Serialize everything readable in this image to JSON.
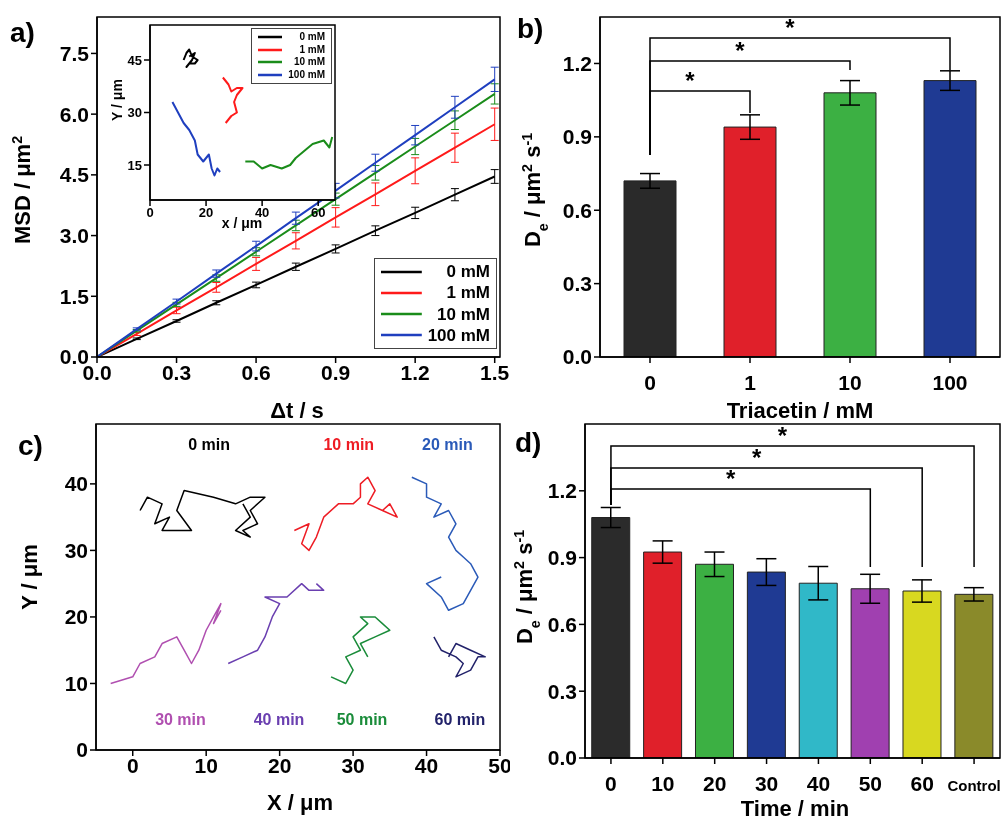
{
  "chart_data": [
    {
      "type": "line",
      "title": "a)",
      "xlabel": "Δt / s",
      "ylabel": "MSD / μm$^{2}$",
      "x": [
        0,
        0.15,
        0.3,
        0.45,
        0.6,
        0.75,
        0.9,
        1.05,
        1.2,
        1.35,
        1.5
      ],
      "xlim": [
        0,
        1.52
      ],
      "xticks": [
        {
          "value": 0,
          "label": "0.0"
        },
        {
          "value": 0.3,
          "label": "0.3"
        },
        {
          "value": 0.6,
          "label": "0.6"
        },
        {
          "value": 0.9,
          "label": "0.9"
        },
        {
          "value": 1.2,
          "label": "1.2"
        },
        {
          "value": 1.5,
          "label": "1.5"
        }
      ],
      "ylim": [
        0,
        8.4
      ],
      "yticks": [
        {
          "value": 0,
          "label": "0.0"
        },
        {
          "value": 1.5,
          "label": "1.5"
        },
        {
          "value": 3,
          "label": "3.0"
        },
        {
          "value": 4.5,
          "label": "4.5"
        },
        {
          "value": 6,
          "label": "6.0"
        },
        {
          "value": 7.5,
          "label": "7.5"
        }
      ],
      "legend": "bottom right",
      "series": [
        {
          "name": "0 mM",
          "color": "#000000",
          "values": [
            0,
            0.45,
            0.89,
            1.34,
            1.78,
            2.23,
            2.67,
            3.12,
            3.56,
            4.01,
            4.46
          ],
          "errors": [
            0,
            0.02,
            0.03,
            0.05,
            0.07,
            0.09,
            0.1,
            0.12,
            0.14,
            0.15,
            0.17
          ]
        },
        {
          "name": "1 mM",
          "color": "#ff1a1a",
          "values": [
            0,
            0.57,
            1.15,
            1.72,
            2.3,
            2.87,
            3.45,
            4.02,
            4.6,
            5.17,
            5.75
          ],
          "errors": [
            0,
            0.04,
            0.08,
            0.12,
            0.16,
            0.2,
            0.24,
            0.28,
            0.32,
            0.36,
            0.4
          ]
        },
        {
          "name": "10 mM",
          "color": "#1a8c1a",
          "values": [
            0,
            0.65,
            1.3,
            1.95,
            2.6,
            3.25,
            3.9,
            4.55,
            5.2,
            5.85,
            6.5
          ],
          "errors": [
            0,
            0.03,
            0.05,
            0.08,
            0.1,
            0.13,
            0.15,
            0.18,
            0.2,
            0.23,
            0.25
          ]
        },
        {
          "name": "100 mM",
          "color": "#1f3fbf",
          "values": [
            0,
            0.69,
            1.37,
            2.06,
            2.74,
            3.43,
            4.11,
            4.8,
            5.48,
            6.17,
            6.86
          ],
          "errors": [
            0,
            0.03,
            0.06,
            0.09,
            0.12,
            0.15,
            0.18,
            0.21,
            0.24,
            0.27,
            0.3
          ]
        }
      ]
    },
    {
      "type": "line",
      "xlabel": "x / μm",
      "ylabel": "Y / μm",
      "xlim": [
        0,
        66
      ],
      "xticks": [
        0,
        20,
        40,
        60
      ],
      "ylim": [
        5,
        55
      ],
      "yticks": [
        15,
        30,
        45
      ],
      "legend": "top right",
      "series": [
        {
          "name": "0 mM",
          "color": "#000000",
          "x": [
            12,
            13,
            14,
            15,
            17,
            16,
            14,
            13,
            15,
            16,
            14
          ],
          "values": [
            45,
            47,
            48,
            46,
            45,
            44,
            44,
            43,
            45,
            47,
            46
          ]
        },
        {
          "name": "1 mM",
          "color": "#ff1a1a",
          "x": [
            26,
            28,
            29,
            31,
            33,
            31,
            30,
            31,
            29,
            28,
            27
          ],
          "values": [
            40,
            38,
            36,
            37,
            37,
            35,
            33,
            30,
            29,
            28,
            27
          ]
        },
        {
          "name": "10 mM",
          "color": "#1a8c1a",
          "x": [
            34,
            37,
            40,
            43,
            47,
            50,
            52,
            55,
            58,
            62,
            64,
            65
          ],
          "values": [
            16,
            16,
            14,
            15,
            14,
            15,
            17,
            19,
            21,
            22,
            20,
            23
          ]
        },
        {
          "name": "100 mM",
          "color": "#1f3fbf",
          "x": [
            8,
            10,
            12,
            14,
            16,
            17,
            19,
            21,
            22,
            23,
            24,
            25
          ],
          "values": [
            33,
            30,
            27,
            25,
            22,
            18,
            16,
            18,
            14,
            12,
            14,
            13
          ]
        }
      ]
    },
    {
      "type": "bar",
      "title": "b)",
      "xlabel": "Triacetin / mM",
      "ylabel": "D$_{e}$ / μm$^{2}$ s$^{-1}$",
      "categories": [
        "0",
        "1",
        "10",
        "100"
      ],
      "values": [
        0.72,
        0.94,
        1.08,
        1.13
      ],
      "errors": [
        0.03,
        0.05,
        0.05,
        0.04
      ],
      "colors": [
        "#2a2a2a",
        "#e0202a",
        "#3cb043",
        "#1f3a93"
      ],
      "ylim": [
        0,
        1.39
      ],
      "yticks": [
        {
          "value": 0,
          "label": "0.0"
        },
        {
          "value": 0.3,
          "label": "0.3"
        },
        {
          "value": 0.6,
          "label": "0.6"
        },
        {
          "value": 0.9,
          "label": "0.9"
        },
        {
          "value": 1.2,
          "label": "1.2"
        }
      ],
      "annotations": [
        "*",
        "*",
        "*"
      ]
    },
    {
      "type": "line",
      "title": "c)",
      "xlabel": "X / μm",
      "ylabel": "Y / μm",
      "xlim": [
        -5,
        50
      ],
      "xticks": [
        0,
        10,
        20,
        30,
        40,
        50
      ],
      "ylim": [
        0,
        49
      ],
      "yticks": [
        0,
        10,
        20,
        30,
        40
      ],
      "series": [
        {
          "name": "0 min",
          "color": "#000000",
          "x": [
            1,
            2,
            4,
            3,
            5,
            4,
            8,
            6,
            7,
            11,
            14,
            16,
            18,
            16,
            17,
            15,
            16,
            14,
            16,
            15
          ],
          "values": [
            36,
            38,
            37,
            34,
            35,
            33,
            33,
            36,
            39,
            38,
            37,
            38,
            38,
            36,
            34,
            33,
            32,
            33,
            35,
            37
          ]
        },
        {
          "name": "10 min",
          "color": "#ee1c24",
          "x": [
            22,
            24,
            23,
            24,
            25,
            26,
            28,
            30,
            31,
            31,
            32,
            33,
            32,
            34,
            35,
            36,
            34
          ],
          "values": [
            33,
            34,
            31,
            30,
            32,
            35,
            37,
            37,
            38,
            40,
            41,
            39,
            37,
            36,
            37,
            35,
            36
          ]
        },
        {
          "name": "20 min",
          "color": "#2a5ab8",
          "x": [
            38,
            40,
            40,
            42,
            41,
            43,
            44,
            43,
            44,
            45,
            46,
            47,
            46,
            45,
            43,
            42,
            40,
            42
          ],
          "values": [
            41,
            40,
            38,
            37,
            35,
            36,
            34,
            32,
            30,
            29,
            28,
            26,
            24,
            22,
            21,
            23,
            25,
            26
          ]
        },
        {
          "name": "30 min",
          "color": "#b04fb0",
          "x": [
            -3,
            0,
            1,
            3,
            4,
            6,
            7,
            8,
            9,
            10,
            11,
            12,
            11,
            12
          ],
          "values": [
            10,
            11,
            13,
            14,
            16,
            17,
            15,
            13,
            15,
            18,
            20,
            22,
            19,
            21
          ]
        },
        {
          "name": "40 min",
          "color": "#6a3fb0",
          "x": [
            13,
            15,
            17,
            18,
            19,
            20,
            18,
            21,
            23,
            24,
            26,
            25
          ],
          "values": [
            13,
            14,
            15,
            17,
            20,
            22,
            23,
            23,
            25,
            24,
            24,
            25
          ]
        },
        {
          "name": "50 min",
          "color": "#1a8c3a",
          "x": [
            27,
            29,
            30,
            29,
            31,
            30,
            32,
            31,
            33,
            34,
            35,
            33,
            31,
            32
          ],
          "values": [
            11,
            10,
            12,
            14,
            15,
            17,
            19,
            20,
            20,
            19,
            18,
            17,
            16,
            14
          ]
        },
        {
          "name": "60 min",
          "color": "#22226a",
          "x": [
            41,
            42,
            44,
            45,
            44,
            46,
            47,
            48,
            46,
            44,
            43
          ],
          "values": [
            17,
            15,
            14,
            13,
            11,
            12,
            14,
            14,
            15,
            16,
            14
          ]
        }
      ]
    },
    {
      "type": "bar",
      "title": "d)",
      "xlabel": "Time / min",
      "ylabel": "D$_{e}$ / μm$^{2}$ s$^{-1}$",
      "categories": [
        "0",
        "10",
        "20",
        "30",
        "40",
        "50",
        "60",
        "Control"
      ],
      "values": [
        1.08,
        0.925,
        0.87,
        0.835,
        0.785,
        0.76,
        0.75,
        0.735
      ],
      "errors": [
        0.045,
        0.05,
        0.055,
        0.06,
        0.075,
        0.065,
        0.05,
        0.03
      ],
      "colors": [
        "#2b2b2b",
        "#e0202a",
        "#3cb043",
        "#1f3a93",
        "#30b8c8",
        "#a040b0",
        "#d8d820",
        "#8a8a2a"
      ],
      "ylim": [
        0,
        1.5
      ],
      "yticks": [
        {
          "value": 0,
          "label": "0.0"
        },
        {
          "value": 0.3,
          "label": "0.3"
        },
        {
          "value": 0.6,
          "label": "0.6"
        },
        {
          "value": 0.9,
          "label": "0.9"
        },
        {
          "value": 1.2,
          "label": "1.2"
        }
      ],
      "annotations": [
        "*",
        "*",
        "*"
      ]
    }
  ]
}
